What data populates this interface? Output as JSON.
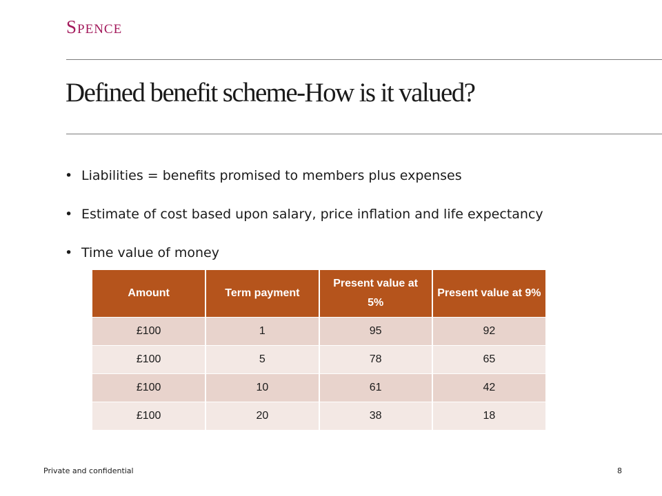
{
  "logo": {
    "text": "Spence",
    "color": "#A3195B"
  },
  "slide": {
    "title": "Defined benefit scheme-How is it valued?",
    "bullets": [
      {
        "marker": "•",
        "text": "Liabilities = benefits promised to members plus expenses"
      },
      {
        "marker": "•",
        "text": "Estimate of cost based upon salary, price inflation and life expectancy"
      },
      {
        "marker": "•",
        "text": "Time value of money"
      }
    ]
  },
  "table": {
    "header_color": "#B5541C",
    "row_colors": [
      "#E8D3CC",
      "#F3E8E4"
    ],
    "headers": [
      "Amount",
      "Term payment",
      "Present value at 5%",
      "Present value at 9%"
    ],
    "rows": [
      [
        "£100",
        "1",
        "95",
        "92"
      ],
      [
        "£100",
        "5",
        "78",
        "65"
      ],
      [
        "£100",
        "10",
        "61",
        "42"
      ],
      [
        "£100",
        "20",
        "38",
        "18"
      ]
    ]
  },
  "footer": {
    "left": "Private and confidential",
    "page_number": "8"
  }
}
